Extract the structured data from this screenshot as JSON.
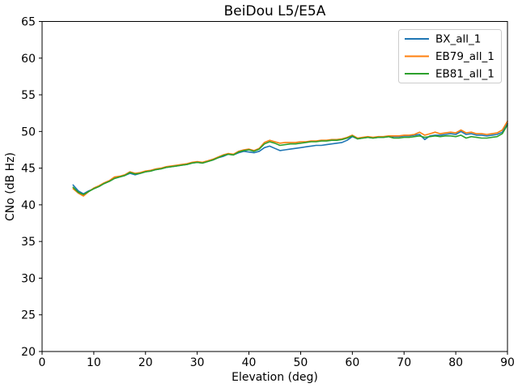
{
  "chart_data": {
    "type": "line",
    "title": "BeiDou L5/E5A",
    "xlabel": "Elevation (deg)",
    "ylabel": "CNo (dB Hz)",
    "xlim": [
      0,
      90
    ],
    "ylim": [
      20,
      65
    ],
    "xticks": [
      0,
      10,
      20,
      30,
      40,
      50,
      60,
      70,
      80,
      90
    ],
    "yticks": [
      20,
      25,
      30,
      35,
      40,
      45,
      50,
      55,
      60,
      65
    ],
    "grid": false,
    "legend_position": "upper right",
    "background_color": "#ffffff",
    "axis_color": "#000000",
    "legend_border_color": "#cccccc",
    "x": [
      6,
      7,
      8,
      9,
      10,
      11,
      12,
      13,
      14,
      15,
      16,
      17,
      18,
      19,
      20,
      21,
      22,
      23,
      24,
      25,
      26,
      27,
      28,
      29,
      30,
      31,
      32,
      33,
      34,
      35,
      36,
      37,
      38,
      39,
      40,
      41,
      42,
      43,
      44,
      45,
      46,
      47,
      48,
      49,
      50,
      51,
      52,
      53,
      54,
      55,
      56,
      57,
      58,
      59,
      60,
      61,
      62,
      63,
      64,
      65,
      66,
      67,
      68,
      69,
      70,
      71,
      72,
      73,
      74,
      75,
      76,
      77,
      78,
      79,
      80,
      81,
      82,
      83,
      84,
      85,
      86,
      87,
      88,
      89,
      90
    ],
    "series": [
      {
        "name": "BX_all_1",
        "color": "#1f77b4",
        "values": [
          42.7,
          41.9,
          41.5,
          41.9,
          42.2,
          42.5,
          42.9,
          43.2,
          43.6,
          43.8,
          44.0,
          44.3,
          44.1,
          44.3,
          44.5,
          44.6,
          44.8,
          44.9,
          45.1,
          45.2,
          45.3,
          45.4,
          45.5,
          45.7,
          45.8,
          45.7,
          45.9,
          46.1,
          46.4,
          46.6,
          46.9,
          46.8,
          47.1,
          47.3,
          47.2,
          47.1,
          47.3,
          47.8,
          48.0,
          47.7,
          47.4,
          47.5,
          47.6,
          47.7,
          47.8,
          47.9,
          48.0,
          48.1,
          48.1,
          48.2,
          48.3,
          48.4,
          48.5,
          48.8,
          49.3,
          49.0,
          49.1,
          49.2,
          49.1,
          49.2,
          49.2,
          49.3,
          49.3,
          49.3,
          49.4,
          49.4,
          49.5,
          49.6,
          48.9,
          49.4,
          49.5,
          49.5,
          49.6,
          49.7,
          49.6,
          50.0,
          49.6,
          49.7,
          49.5,
          49.5,
          49.4,
          49.5,
          49.6,
          49.9,
          51.1
        ]
      },
      {
        "name": "EB79_all_1",
        "color": "#ff7f0e",
        "values": [
          42.2,
          41.6,
          41.2,
          41.8,
          42.3,
          42.6,
          43.0,
          43.3,
          43.8,
          43.9,
          44.1,
          44.5,
          44.3,
          44.4,
          44.6,
          44.7,
          44.9,
          45.0,
          45.2,
          45.3,
          45.4,
          45.5,
          45.6,
          45.8,
          45.9,
          45.8,
          46.0,
          46.2,
          46.5,
          46.8,
          47.0,
          46.9,
          47.3,
          47.5,
          47.6,
          47.4,
          47.7,
          48.5,
          48.8,
          48.6,
          48.4,
          48.5,
          48.5,
          48.5,
          48.6,
          48.6,
          48.7,
          48.7,
          48.8,
          48.8,
          48.9,
          48.9,
          49.0,
          49.2,
          49.5,
          49.1,
          49.2,
          49.3,
          49.2,
          49.3,
          49.3,
          49.4,
          49.4,
          49.4,
          49.5,
          49.5,
          49.6,
          49.9,
          49.5,
          49.7,
          49.9,
          49.7,
          49.8,
          49.9,
          49.8,
          50.2,
          49.8,
          49.9,
          49.7,
          49.7,
          49.6,
          49.7,
          49.8,
          50.2,
          51.4
        ]
      },
      {
        "name": "EB81_all_1",
        "color": "#2ca02c",
        "values": [
          42.4,
          41.7,
          41.4,
          41.8,
          42.2,
          42.5,
          42.9,
          43.2,
          43.6,
          43.8,
          44.0,
          44.4,
          44.2,
          44.3,
          44.5,
          44.6,
          44.8,
          44.9,
          45.1,
          45.2,
          45.3,
          45.4,
          45.5,
          45.7,
          45.8,
          45.7,
          45.9,
          46.1,
          46.4,
          46.7,
          46.9,
          46.8,
          47.2,
          47.4,
          47.5,
          47.3,
          47.6,
          48.3,
          48.6,
          48.4,
          48.1,
          48.2,
          48.3,
          48.3,
          48.4,
          48.5,
          48.6,
          48.6,
          48.7,
          48.7,
          48.8,
          48.8,
          48.9,
          49.1,
          49.4,
          49.0,
          49.1,
          49.2,
          49.1,
          49.2,
          49.2,
          49.3,
          49.1,
          49.1,
          49.2,
          49.2,
          49.3,
          49.4,
          49.2,
          49.3,
          49.4,
          49.3,
          49.4,
          49.4,
          49.3,
          49.5,
          49.1,
          49.3,
          49.2,
          49.1,
          49.1,
          49.2,
          49.3,
          49.7,
          50.9
        ]
      }
    ]
  }
}
